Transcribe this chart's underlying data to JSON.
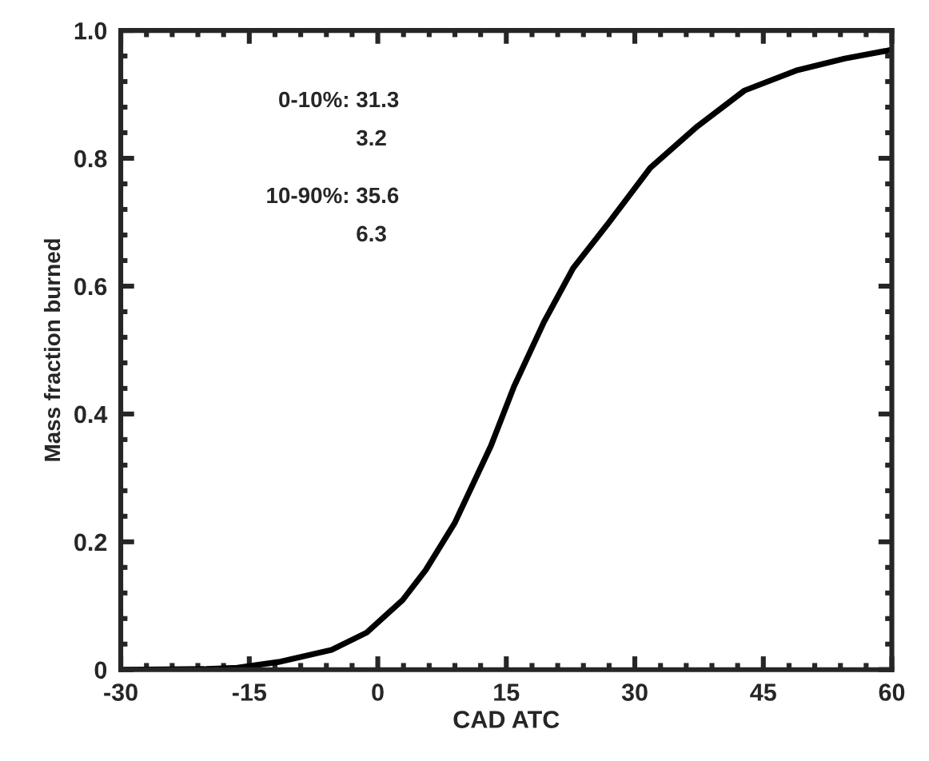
{
  "chart_data": {
    "type": "line",
    "xlabel": "CAD ATC",
    "ylabel": "Mass fraction burned",
    "annotations": [
      "0-10%: 31.3",
      "3.2",
      "10-90%: 35.6",
      "6.3"
    ],
    "x": [
      -30,
      -20,
      -16.4,
      -11.6,
      -5.4,
      -1.3,
      2.9,
      5.6,
      9.0,
      13.2,
      15.9,
      19.4,
      22.8,
      27.0,
      31.8,
      37.3,
      42.8,
      49.0,
      54.5,
      59.3,
      60
    ],
    "series": [
      {
        "color": "#000000",
        "values": [
          0,
          0.001,
          0.003,
          0.012,
          0.031,
          0.058,
          0.109,
          0.156,
          0.23,
          0.35,
          0.443,
          0.544,
          0.628,
          0.7,
          0.785,
          0.85,
          0.906,
          0.938,
          0.956,
          0.968,
          0.97
        ]
      }
    ],
    "xlim": [
      -30,
      60
    ],
    "xticks": [
      -30,
      -15,
      0,
      15,
      30,
      45,
      60
    ],
    "ylim": [
      0,
      1.0
    ],
    "yticks": [
      0,
      0.2,
      0.4,
      0.6,
      0.8,
      {
        "value": 1.0,
        "label": "1.0"
      }
    ],
    "line_style": "solid",
    "grid": false
  }
}
